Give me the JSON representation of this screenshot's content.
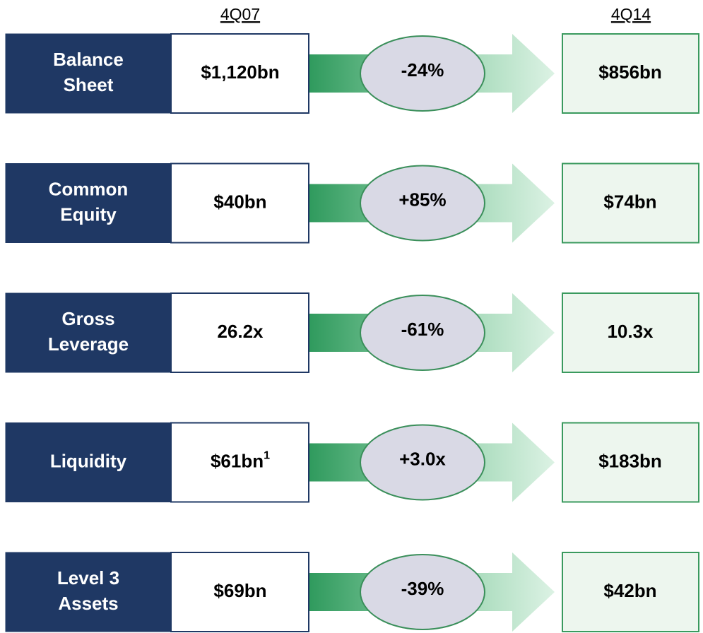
{
  "headers": {
    "from": "4Q07",
    "to": "4Q14"
  },
  "rows": [
    {
      "label": [
        "Balance",
        "Sheet"
      ],
      "from": "$1,120bn",
      "change": "-24%",
      "to": "$856bn"
    },
    {
      "label": [
        "Common",
        "Equity"
      ],
      "from": "$40bn",
      "change": "+85%",
      "to": "$74bn"
    },
    {
      "label": [
        "Gross",
        "Leverage"
      ],
      "from": "26.2x",
      "change": "-61%",
      "to": "10.3x"
    },
    {
      "label": [
        "Liquidity"
      ],
      "from": "$61bn",
      "from_note": "1",
      "change": "+3.0x",
      "to": "$183bn"
    },
    {
      "label": [
        "Level 3",
        "Assets"
      ],
      "from": "$69bn",
      "change": "-39%",
      "to": "$42bn"
    }
  ]
}
